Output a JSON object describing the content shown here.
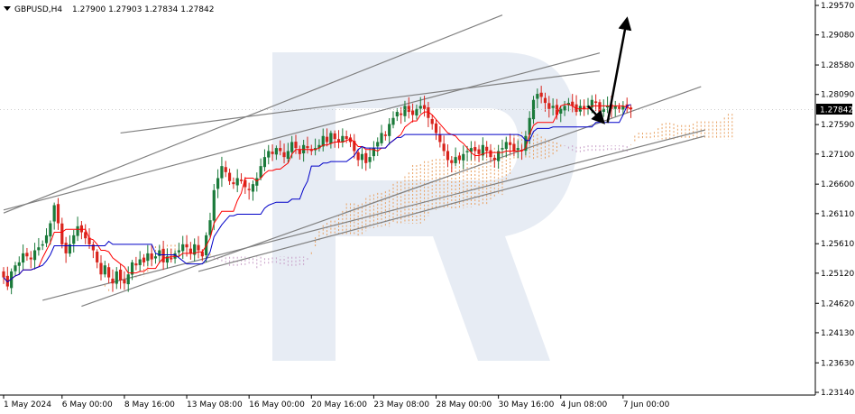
{
  "header": {
    "symbol": "GBPUSD,H4",
    "ohlc": "1.27900 1.27903 1.27834 1.27842",
    "menu_icon": "triangle-down-icon"
  },
  "chart_data": {
    "type": "candlestick",
    "title": "",
    "ylim": [
      1.2314,
      1.2957
    ],
    "y_ticks": [
      "1.29570",
      "1.29080",
      "1.28580",
      "1.28090",
      "1.27590",
      "1.27100",
      "1.26600",
      "1.26110",
      "1.25610",
      "1.25120",
      "1.24620",
      "1.24130",
      "1.23630",
      "1.23140"
    ],
    "y_tick_values": [
      1.2957,
      1.2908,
      1.2858,
      1.2809,
      1.2759,
      1.271,
      1.266,
      1.2611,
      1.2561,
      1.2512,
      1.2462,
      1.2413,
      1.2363,
      1.2314
    ],
    "x_ticks": [
      "1 May 2024",
      "6 May 00:00",
      "8 May 16:00",
      "13 May 08:00",
      "16 May 00:00",
      "20 May 16:00",
      "23 May 08:00",
      "28 May 00:00",
      "30 May 16:00",
      "4 Jun 08:00",
      "7 Jun 00:00"
    ],
    "x_tick_bar_index": [
      0,
      15,
      31,
      47,
      63,
      79,
      95,
      111,
      127,
      143,
      159
    ],
    "current_price": "1.27842",
    "current_price_value": 1.27842,
    "candle_count": 162,
    "closes": [
      1.2505,
      1.249,
      1.2515,
      1.2525,
      1.253,
      1.2545,
      1.254,
      1.2535,
      1.255,
      1.2555,
      1.256,
      1.2575,
      1.2595,
      1.2625,
      1.2595,
      1.256,
      1.2545,
      1.256,
      1.2575,
      1.259,
      1.258,
      1.257,
      1.256,
      1.255,
      1.253,
      1.251,
      1.2525,
      1.2505,
      1.2495,
      1.2515,
      1.25,
      1.2495,
      1.251,
      1.253,
      1.2525,
      1.2535,
      1.253,
      1.2545,
      1.2535,
      1.254,
      1.255,
      1.253,
      1.254,
      1.2535,
      1.2545,
      1.255,
      1.256,
      1.2555,
      1.2545,
      1.256,
      1.255,
      1.254,
      1.2575,
      1.26,
      1.265,
      1.267,
      1.269,
      1.268,
      1.2665,
      1.266,
      1.267,
      1.2665,
      1.2655,
      1.265,
      1.266,
      1.267,
      1.269,
      1.2705,
      1.2715,
      1.271,
      1.272,
      1.2715,
      1.2705,
      1.2715,
      1.273,
      1.272,
      1.271,
      1.2725,
      1.272,
      1.2715,
      1.272,
      1.2725,
      1.274,
      1.273,
      1.2745,
      1.2735,
      1.273,
      1.274,
      1.2735,
      1.273,
      1.2715,
      1.27,
      1.271,
      1.2695,
      1.2705,
      1.272,
      1.273,
      1.2745,
      1.274,
      1.276,
      1.277,
      1.278,
      1.2775,
      1.279,
      1.278,
      1.2775,
      1.2785,
      1.279,
      1.2785,
      1.277,
      1.276,
      1.2745,
      1.273,
      1.2715,
      1.27,
      1.2695,
      1.2705,
      1.27,
      1.271,
      1.2715,
      1.272,
      1.2715,
      1.271,
      1.2725,
      1.2715,
      1.2705,
      1.27,
      1.2715,
      1.272,
      1.273,
      1.2725,
      1.2715,
      1.272,
      1.2715,
      1.274,
      1.277,
      1.28,
      1.281,
      1.2805,
      1.2795,
      1.2785,
      1.279,
      1.2775,
      1.2785,
      1.279,
      1.2795,
      1.279,
      1.278,
      1.279,
      1.2785,
      1.279,
      1.28,
      1.2795,
      1.278,
      1.2785,
      1.279,
      1.2785,
      1.279,
      1.2785,
      1.279,
      1.2787,
      1.2784
    ],
    "overlays": {
      "tenkan_color": "#ff0000",
      "kijun_color": "#0000c8",
      "cloud_bull_color": "#e8a060",
      "cloud_bear_color": "#c8a0c8",
      "trendline_color": "#808080",
      "arrow_color": "#000000",
      "bull_candle_color": "#1a7a3a",
      "bear_candle_color": "#d8241c"
    },
    "watermark": "logo-watermark"
  }
}
